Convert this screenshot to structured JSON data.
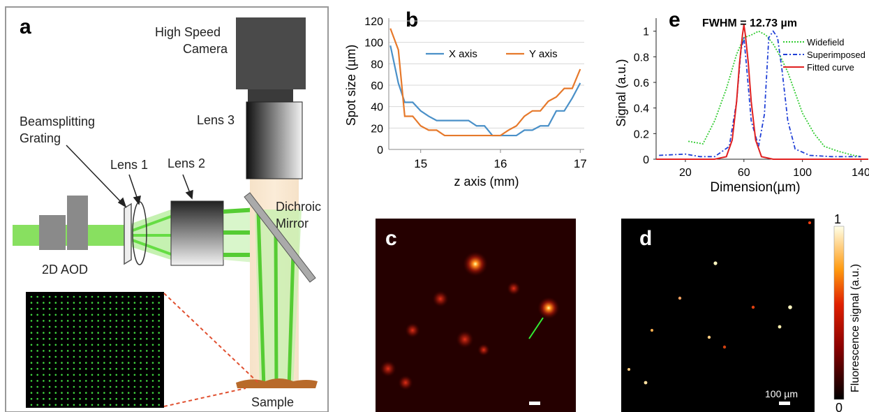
{
  "panels": {
    "a": {
      "letter": "a",
      "labels": {
        "camera": [
          "High Speed",
          "Camera"
        ],
        "lens3": "Lens 3",
        "grating": [
          "Beamsplitting",
          "Grating"
        ],
        "lens1": "Lens 1",
        "lens2": "Lens 2",
        "dichroic": [
          "Dichroic",
          "Mirror"
        ],
        "aod": "2D AOD",
        "sample": "Sample"
      }
    },
    "b": {
      "letter": "b"
    },
    "c": {
      "letter": "c"
    },
    "d": {
      "letter": "d",
      "scalebar": "100 µm"
    },
    "e": {
      "letter": "e",
      "annotation": "FWHM = 12.73 µm"
    },
    "colorbar": {
      "label": "Fluorescence signal (a.u.)",
      "max": "1",
      "min": "0"
    }
  },
  "colors": {
    "x_axis": "#4a90c8",
    "y_axis": "#e6792b",
    "widefield": "#33cc33",
    "superimposed": "#1f3fd6",
    "fitted": "#e02020",
    "beam": "#66dd44"
  },
  "chart_data": [
    {
      "type": "line",
      "panel": "b",
      "xlabel": "z axis (mm)",
      "ylabel": "Spot size (µm)",
      "xlim": [
        14.6,
        17.05
      ],
      "ylim": [
        0,
        120
      ],
      "xticks": [
        15,
        16,
        17
      ],
      "yticks": [
        0,
        20,
        40,
        60,
        80,
        100,
        120
      ],
      "grid": true,
      "legend": "top",
      "series": [
        {
          "name": "X axis",
          "x": [
            14.62,
            14.72,
            14.8,
            14.9,
            15.0,
            15.1,
            15.2,
            15.3,
            15.4,
            15.5,
            15.6,
            15.7,
            15.8,
            15.9,
            16.0,
            16.1,
            16.2,
            16.3,
            16.4,
            16.5,
            16.6,
            16.7,
            16.8,
            16.9,
            17.0
          ],
          "y": [
            97,
            62,
            44,
            44,
            36,
            31,
            27,
            27,
            27,
            27,
            27,
            22,
            22,
            13,
            13,
            13,
            13,
            18,
            18,
            22,
            22,
            36,
            36,
            48,
            62
          ]
        },
        {
          "name": "Y axis",
          "x": [
            14.62,
            14.72,
            14.8,
            14.9,
            15.0,
            15.1,
            15.2,
            15.3,
            15.4,
            15.5,
            15.6,
            15.7,
            15.8,
            15.9,
            16.0,
            16.1,
            16.2,
            16.3,
            16.4,
            16.5,
            16.6,
            16.7,
            16.8,
            16.9,
            17.0
          ],
          "y": [
            113,
            93,
            31,
            31,
            22,
            18,
            18,
            13,
            13,
            13,
            13,
            13,
            13,
            13,
            13,
            18,
            22,
            31,
            36,
            36,
            45,
            49,
            57,
            57,
            75
          ]
        }
      ]
    },
    {
      "type": "line",
      "panel": "e",
      "xlabel": "Dimension(µm)",
      "ylabel": "Signal (a.u.)",
      "xlim": [
        0,
        145
      ],
      "ylim": [
        0,
        1.08
      ],
      "xticks": [
        20,
        60,
        100,
        140
      ],
      "yticks": [
        0,
        0.2,
        0.4,
        0.6,
        0.8,
        1
      ],
      "grid": false,
      "legend": "top-right",
      "series": [
        {
          "name": "Widefield",
          "x": [
            22,
            32,
            40,
            48,
            55,
            60,
            65,
            70,
            75,
            80,
            85,
            90,
            95,
            100,
            108,
            115,
            125,
            135,
            140
          ],
          "y": [
            0.14,
            0.12,
            0.3,
            0.55,
            0.82,
            0.95,
            0.97,
            1.0,
            0.97,
            0.9,
            0.8,
            0.68,
            0.52,
            0.36,
            0.2,
            0.1,
            0.06,
            0.03,
            0.02
          ]
        },
        {
          "name": "Superimposed",
          "x": [
            2,
            20,
            30,
            40,
            50,
            55,
            58,
            60,
            62,
            65,
            70,
            74,
            77,
            80,
            83,
            86,
            90,
            95,
            105,
            120,
            140
          ],
          "y": [
            0.03,
            0.04,
            0.02,
            0.02,
            0.1,
            0.45,
            0.85,
            0.95,
            0.7,
            0.3,
            0.1,
            0.35,
            0.95,
            1.0,
            0.95,
            0.7,
            0.3,
            0.08,
            0.03,
            0.02,
            0.02
          ]
        },
        {
          "name": "Fitted curve",
          "x": [
            0,
            40,
            48,
            52,
            55,
            57,
            59,
            60,
            61,
            63,
            65,
            68,
            72,
            80,
            145
          ],
          "y": [
            0,
            0,
            0.02,
            0.15,
            0.45,
            0.75,
            0.97,
            1.05,
            0.97,
            0.75,
            0.45,
            0.15,
            0.02,
            0,
            0
          ]
        }
      ]
    }
  ]
}
